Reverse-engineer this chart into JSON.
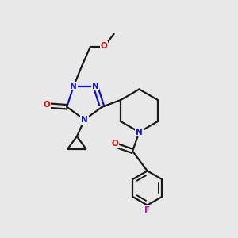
{
  "background_color": "#e8e8e8",
  "bond_color": "#1a1a1a",
  "n_color": "#1010cc",
  "o_color": "#cc1010",
  "f_color": "#cc00cc",
  "line_width": 1.6,
  "figsize": [
    3.0,
    3.0
  ],
  "dpi": 100,
  "xlim": [
    0,
    10
  ],
  "ylim": [
    0,
    10
  ]
}
